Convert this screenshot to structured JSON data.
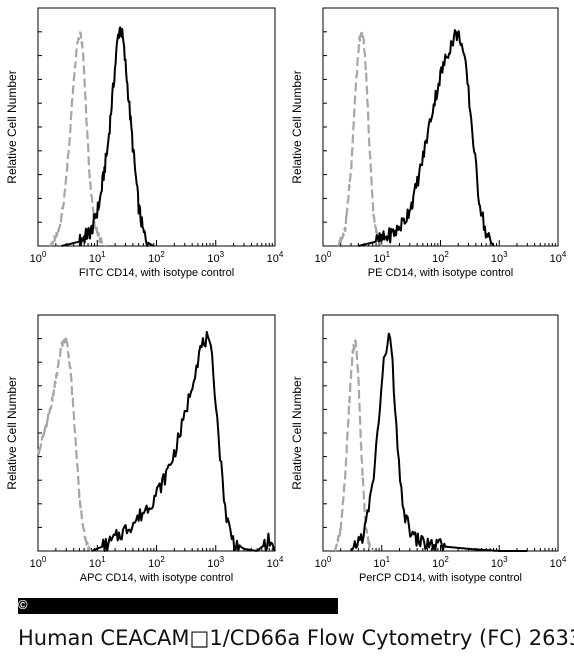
{
  "caption": "Human CEACAM□1/CD66a Flow Cytometry (FC) 2633",
  "copyright_mark": "©",
  "colors": {
    "sample": "#000000",
    "isotype": "#a6a6a6",
    "axis": "#000000"
  },
  "chart_data": [
    {
      "type": "line",
      "ylabel": "Relative Cell Number",
      "xlabel": "FITC  CD14,  with isotype control",
      "x_scale": "log",
      "xlim": [
        1,
        10000
      ],
      "xticks": [
        {
          "value": 1,
          "base": "10",
          "exp": "0"
        },
        {
          "value": 10,
          "base": "10",
          "exp": "1"
        },
        {
          "value": 100,
          "base": "10",
          "exp": "2"
        },
        {
          "value": 1000,
          "base": "10",
          "exp": "3"
        },
        {
          "value": 10000,
          "base": "10",
          "exp": "4"
        }
      ],
      "ylim": [
        0,
        1
      ],
      "series": [
        {
          "style": "isotype",
          "x": [
            1.6,
            2.2,
            2.8,
            3.4,
            4.0,
            4.6,
            5.2,
            5.8,
            6.5,
            7.5,
            9.0,
            11,
            14
          ],
          "y": [
            0.0,
            0.06,
            0.22,
            0.48,
            0.76,
            0.93,
            0.98,
            0.88,
            0.6,
            0.3,
            0.1,
            0.03,
            0.0
          ]
        },
        {
          "style": "sample",
          "x": [
            2.5,
            5,
            8,
            11,
            15,
            19,
            22,
            24,
            27,
            32,
            40,
            50,
            60,
            75,
            90
          ],
          "y": [
            0.0,
            0.02,
            0.07,
            0.2,
            0.45,
            0.75,
            0.94,
            1.0,
            0.95,
            0.75,
            0.45,
            0.18,
            0.06,
            0.01,
            0.0
          ]
        }
      ]
    },
    {
      "type": "line",
      "ylabel": "Relative Cell Number",
      "xlabel": "PE CD14,  with isotype control",
      "x_scale": "log",
      "xlim": [
        1,
        10000
      ],
      "xticks": [
        {
          "value": 1,
          "base": "10",
          "exp": "0"
        },
        {
          "value": 10,
          "base": "10",
          "exp": "1"
        },
        {
          "value": 100,
          "base": "10",
          "exp": "2"
        },
        {
          "value": 1000,
          "base": "10",
          "exp": "3"
        },
        {
          "value": 10000,
          "base": "10",
          "exp": "4"
        }
      ],
      "ylim": [
        0,
        1
      ],
      "series": [
        {
          "style": "isotype",
          "x": [
            1.8,
            2.4,
            3.0,
            3.6,
            4.2,
            4.8,
            5.4,
            6.2,
            7.2,
            8.5,
            10
          ],
          "y": [
            0.0,
            0.08,
            0.35,
            0.72,
            0.95,
            0.97,
            0.8,
            0.45,
            0.15,
            0.03,
            0.0
          ]
        },
        {
          "style": "sample",
          "x": [
            4,
            8,
            12,
            18,
            25,
            35,
            50,
            70,
            100,
            140,
            180,
            220,
            280,
            350,
            450,
            600,
            800
          ],
          "y": [
            0.0,
            0.02,
            0.04,
            0.07,
            0.12,
            0.22,
            0.4,
            0.6,
            0.78,
            0.9,
            0.97,
            0.95,
            0.78,
            0.52,
            0.22,
            0.05,
            0.0
          ]
        }
      ]
    },
    {
      "type": "line",
      "ylabel": "Relative Cell Number",
      "xlabel": "APC CD14, with isotype control",
      "x_scale": "log",
      "xlim": [
        1,
        10000
      ],
      "xticks": [
        {
          "value": 1,
          "base": "10",
          "exp": "0"
        },
        {
          "value": 10,
          "base": "10",
          "exp": "1"
        },
        {
          "value": 100,
          "base": "10",
          "exp": "2"
        },
        {
          "value": 1000,
          "base": "10",
          "exp": "3"
        },
        {
          "value": 10000,
          "base": "10",
          "exp": "4"
        }
      ],
      "ylim": [
        0,
        1
      ],
      "series": [
        {
          "style": "isotype",
          "x": [
            1.0,
            1.3,
            1.7,
            2.1,
            2.5,
            3.0,
            3.5,
            4.2,
            5.0,
            6.0,
            7.0,
            8.0
          ],
          "y": [
            0.45,
            0.55,
            0.68,
            0.82,
            0.95,
            0.98,
            0.85,
            0.55,
            0.25,
            0.08,
            0.02,
            0.0
          ]
        },
        {
          "style": "sample",
          "x": [
            8,
            15,
            25,
            45,
            80,
            130,
            200,
            300,
            420,
            550,
            700,
            850,
            1000,
            1200,
            1500,
            2000,
            3000,
            5000,
            8000,
            10000
          ],
          "y": [
            0.0,
            0.03,
            0.08,
            0.14,
            0.22,
            0.32,
            0.45,
            0.62,
            0.8,
            0.93,
            0.98,
            0.9,
            0.7,
            0.42,
            0.16,
            0.04,
            0.01,
            0.0,
            0.05,
            0.0
          ]
        }
      ]
    },
    {
      "type": "line",
      "ylabel": "Relative Cell Number",
      "xlabel": "PerCP CD14, with isotype control",
      "x_scale": "log",
      "xlim": [
        1,
        10000
      ],
      "xticks": [
        {
          "value": 1,
          "base": "10",
          "exp": "0"
        },
        {
          "value": 10,
          "base": "10",
          "exp": "1"
        },
        {
          "value": 100,
          "base": "10",
          "exp": "2"
        },
        {
          "value": 1000,
          "base": "10",
          "exp": "3"
        },
        {
          "value": 10000,
          "base": "10",
          "exp": "4"
        }
      ],
      "ylim": [
        0,
        1
      ],
      "series": [
        {
          "style": "isotype",
          "x": [
            1.6,
            2.0,
            2.4,
            2.8,
            3.2,
            3.6,
            4.0,
            4.5,
            5.2,
            6.0,
            7.0
          ],
          "y": [
            0.0,
            0.1,
            0.35,
            0.68,
            0.92,
            0.97,
            0.8,
            0.45,
            0.15,
            0.03,
            0.0
          ]
        },
        {
          "style": "sample",
          "x": [
            3,
            5,
            7,
            9,
            11,
            13,
            15,
            17,
            20,
            25,
            35,
            60,
            120,
            300,
            1000,
            3000
          ],
          "y": [
            0.0,
            0.08,
            0.3,
            0.62,
            0.88,
            1.0,
            0.9,
            0.62,
            0.35,
            0.15,
            0.06,
            0.03,
            0.02,
            0.01,
            0.0,
            0.0
          ]
        }
      ]
    }
  ]
}
